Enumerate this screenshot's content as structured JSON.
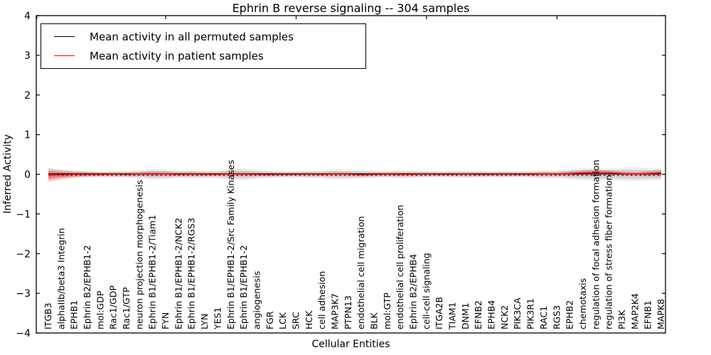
{
  "chart_data": {
    "type": "line",
    "title": "Ephrin B reverse signaling -- 304 samples",
    "xlabel": "Cellular Entities",
    "ylabel": "Inferred Activity",
    "ylim": [
      -4,
      4
    ],
    "yticks": [
      4,
      3,
      2,
      1,
      0,
      -1,
      -2,
      -3,
      -4
    ],
    "xticks_major": [
      0,
      10,
      20,
      30,
      40
    ],
    "grid": false,
    "legend_position": "upper left",
    "categories": [
      "ITGB3",
      "alphaIIb/beta3 Integrin",
      "EPHB1",
      "Ephrin B2/EPHB1-2",
      "mol:GDP",
      "Rac1/GDP",
      "Rac1/GTP",
      "neuron projection morphogenesis",
      "Ephrin B1/EPHB1-2/Tiam1",
      "FYN",
      "Ephrin B1/EPHB1-2/NCK2",
      "Ephrin B1/EPHB1-2/RGS3",
      "LYN",
      "YES1",
      "Ephrin B1/EPHB1-2/Src Family Kinases",
      "Ephrin B1/EPHB1-2",
      "angiogenesis",
      "FGR",
      "LCK",
      "SRC",
      "HCK",
      "cell adhesion",
      "MAP3K7",
      "PTPN13",
      "endothelial cell migration",
      "BLK",
      "mol:GTP",
      "endothelial cell proliferation",
      "Ephrin B2/EPHB4",
      "cell-cell signaling",
      "ITGA2B",
      "TIAM1",
      "DNM1",
      "EFNB2",
      "EPHB4",
      "NCK2",
      "PIK3CA",
      "PIK3R1",
      "RAC1",
      "RGS3",
      "EPHB2",
      "chemotaxis",
      "regulation of focal adhesion formation",
      "regulation of stress fiber formation",
      "PI3K",
      "MAP2K4",
      "EFNB1",
      "MAPK8"
    ],
    "series": [
      {
        "name": "Mean activity in all permuted samples",
        "color": "#000000",
        "band_color": "rgba(130,130,130,0.25)",
        "mean": [
          0,
          0,
          0,
          0,
          0,
          0,
          0,
          0,
          0,
          0,
          0,
          0,
          0,
          0,
          0,
          0,
          0,
          0,
          0,
          0,
          0,
          0,
          0,
          0,
          0,
          0,
          0,
          0,
          0,
          0,
          0,
          0,
          0,
          0,
          0,
          0,
          0,
          0,
          0,
          0,
          0,
          0,
          0,
          0,
          0,
          0,
          0,
          0
        ],
        "std": [
          0.1,
          0.08,
          0.065,
          0.06,
          0.055,
          0.06,
          0.06,
          0.07,
          0.09,
          0.085,
          0.065,
          0.075,
          0.065,
          0.07,
          0.105,
          0.1,
          0.08,
          0.065,
          0.06,
          0.06,
          0.065,
          0.07,
          0.09,
          0.08,
          0.075,
          0.065,
          0.06,
          0.07,
          0.065,
          0.06,
          0.055,
          0.06,
          0.065,
          0.06,
          0.055,
          0.06,
          0.055,
          0.06,
          0.07,
          0.065,
          0.09,
          0.1,
          0.105,
          0.1,
          0.11,
          0.115,
          0.105,
          0.1
        ]
      },
      {
        "name": "Mean activity in patient samples",
        "color": "#ff0000",
        "band_color": "rgba(255,30,30,0.20)",
        "mean": [
          -0.02,
          -0.01,
          0,
          0,
          0,
          0.005,
          0,
          0.01,
          0.015,
          0.01,
          0,
          0.005,
          0,
          0,
          0.01,
          0.005,
          0,
          -0.005,
          0,
          0,
          0.005,
          0,
          0.01,
          0.005,
          -0.01,
          0,
          0.005,
          0,
          0,
          0.005,
          0,
          0,
          0.005,
          0,
          0,
          0.005,
          0,
          0,
          0.01,
          0.005,
          0.02,
          0.035,
          0.045,
          0.04,
          0.02,
          0.01,
          0.02,
          0.035
        ],
        "std": [
          0.18,
          0.12,
          0.08,
          0.055,
          0.045,
          0.04,
          0.04,
          0.05,
          0.065,
          0.06,
          0.045,
          0.05,
          0.04,
          0.04,
          0.06,
          0.055,
          0.045,
          0.04,
          0.035,
          0.035,
          0.04,
          0.04,
          0.05,
          0.045,
          0.045,
          0.04,
          0.04,
          0.045,
          0.04,
          0.04,
          0.035,
          0.035,
          0.04,
          0.04,
          0.035,
          0.04,
          0.035,
          0.035,
          0.045,
          0.04,
          0.06,
          0.075,
          0.08,
          0.07,
          0.06,
          0.05,
          0.07,
          0.09
        ]
      }
    ]
  }
}
